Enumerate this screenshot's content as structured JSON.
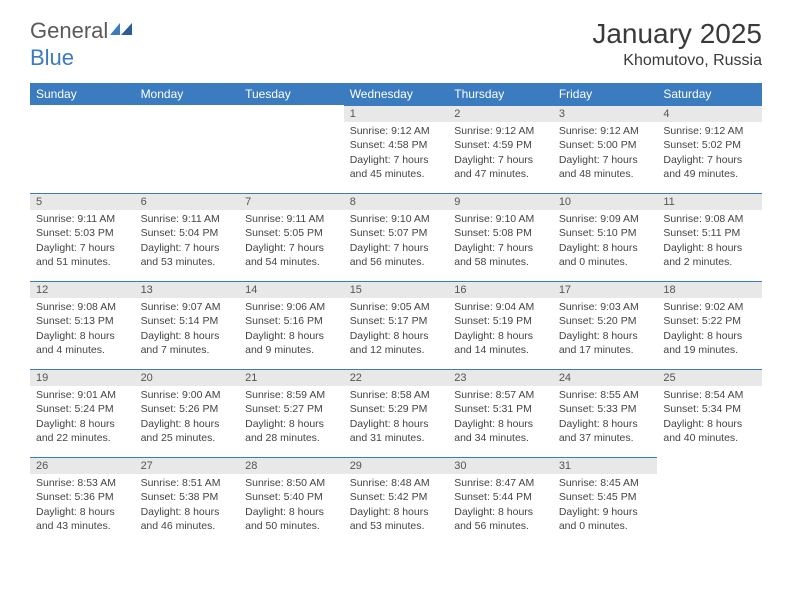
{
  "logo": {
    "word1": "General",
    "word2": "Blue"
  },
  "title": "January 2025",
  "location": "Khomutovo, Russia",
  "colors": {
    "header_bg": "#3b7bbf",
    "header_text": "#ffffff",
    "daybar_bg": "#e8e8e8",
    "daybar_border": "#3b7bbf",
    "text": "#444444",
    "title_text": "#3a3a3a"
  },
  "weekdays": [
    "Sunday",
    "Monday",
    "Tuesday",
    "Wednesday",
    "Thursday",
    "Friday",
    "Saturday"
  ],
  "leading_blanks": 3,
  "days": [
    {
      "n": 1,
      "sunrise": "9:12 AM",
      "sunset": "4:58 PM",
      "dl": "7 hours and 45 minutes."
    },
    {
      "n": 2,
      "sunrise": "9:12 AM",
      "sunset": "4:59 PM",
      "dl": "7 hours and 47 minutes."
    },
    {
      "n": 3,
      "sunrise": "9:12 AM",
      "sunset": "5:00 PM",
      "dl": "7 hours and 48 minutes."
    },
    {
      "n": 4,
      "sunrise": "9:12 AM",
      "sunset": "5:02 PM",
      "dl": "7 hours and 49 minutes."
    },
    {
      "n": 5,
      "sunrise": "9:11 AM",
      "sunset": "5:03 PM",
      "dl": "7 hours and 51 minutes."
    },
    {
      "n": 6,
      "sunrise": "9:11 AM",
      "sunset": "5:04 PM",
      "dl": "7 hours and 53 minutes."
    },
    {
      "n": 7,
      "sunrise": "9:11 AM",
      "sunset": "5:05 PM",
      "dl": "7 hours and 54 minutes."
    },
    {
      "n": 8,
      "sunrise": "9:10 AM",
      "sunset": "5:07 PM",
      "dl": "7 hours and 56 minutes."
    },
    {
      "n": 9,
      "sunrise": "9:10 AM",
      "sunset": "5:08 PM",
      "dl": "7 hours and 58 minutes."
    },
    {
      "n": 10,
      "sunrise": "9:09 AM",
      "sunset": "5:10 PM",
      "dl": "8 hours and 0 minutes."
    },
    {
      "n": 11,
      "sunrise": "9:08 AM",
      "sunset": "5:11 PM",
      "dl": "8 hours and 2 minutes."
    },
    {
      "n": 12,
      "sunrise": "9:08 AM",
      "sunset": "5:13 PM",
      "dl": "8 hours and 4 minutes."
    },
    {
      "n": 13,
      "sunrise": "9:07 AM",
      "sunset": "5:14 PM",
      "dl": "8 hours and 7 minutes."
    },
    {
      "n": 14,
      "sunrise": "9:06 AM",
      "sunset": "5:16 PM",
      "dl": "8 hours and 9 minutes."
    },
    {
      "n": 15,
      "sunrise": "9:05 AM",
      "sunset": "5:17 PM",
      "dl": "8 hours and 12 minutes."
    },
    {
      "n": 16,
      "sunrise": "9:04 AM",
      "sunset": "5:19 PM",
      "dl": "8 hours and 14 minutes."
    },
    {
      "n": 17,
      "sunrise": "9:03 AM",
      "sunset": "5:20 PM",
      "dl": "8 hours and 17 minutes."
    },
    {
      "n": 18,
      "sunrise": "9:02 AM",
      "sunset": "5:22 PM",
      "dl": "8 hours and 19 minutes."
    },
    {
      "n": 19,
      "sunrise": "9:01 AM",
      "sunset": "5:24 PM",
      "dl": "8 hours and 22 minutes."
    },
    {
      "n": 20,
      "sunrise": "9:00 AM",
      "sunset": "5:26 PM",
      "dl": "8 hours and 25 minutes."
    },
    {
      "n": 21,
      "sunrise": "8:59 AM",
      "sunset": "5:27 PM",
      "dl": "8 hours and 28 minutes."
    },
    {
      "n": 22,
      "sunrise": "8:58 AM",
      "sunset": "5:29 PM",
      "dl": "8 hours and 31 minutes."
    },
    {
      "n": 23,
      "sunrise": "8:57 AM",
      "sunset": "5:31 PM",
      "dl": "8 hours and 34 minutes."
    },
    {
      "n": 24,
      "sunrise": "8:55 AM",
      "sunset": "5:33 PM",
      "dl": "8 hours and 37 minutes."
    },
    {
      "n": 25,
      "sunrise": "8:54 AM",
      "sunset": "5:34 PM",
      "dl": "8 hours and 40 minutes."
    },
    {
      "n": 26,
      "sunrise": "8:53 AM",
      "sunset": "5:36 PM",
      "dl": "8 hours and 43 minutes."
    },
    {
      "n": 27,
      "sunrise": "8:51 AM",
      "sunset": "5:38 PM",
      "dl": "8 hours and 46 minutes."
    },
    {
      "n": 28,
      "sunrise": "8:50 AM",
      "sunset": "5:40 PM",
      "dl": "8 hours and 50 minutes."
    },
    {
      "n": 29,
      "sunrise": "8:48 AM",
      "sunset": "5:42 PM",
      "dl": "8 hours and 53 minutes."
    },
    {
      "n": 30,
      "sunrise": "8:47 AM",
      "sunset": "5:44 PM",
      "dl": "8 hours and 56 minutes."
    },
    {
      "n": 31,
      "sunrise": "8:45 AM",
      "sunset": "5:45 PM",
      "dl": "9 hours and 0 minutes."
    }
  ],
  "labels": {
    "sunrise": "Sunrise:",
    "sunset": "Sunset:",
    "daylight": "Daylight:"
  }
}
